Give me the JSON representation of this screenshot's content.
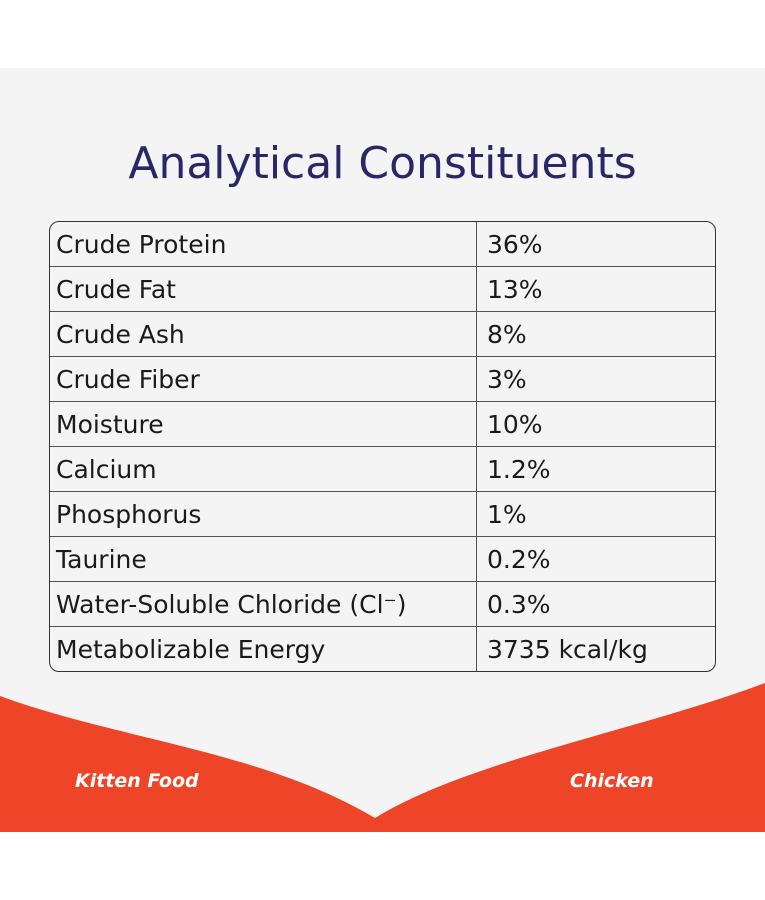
{
  "header": {
    "title": "Analytical Constituents"
  },
  "table": {
    "rows": [
      [
        "Crude Protein",
        "36%"
      ],
      [
        "Crude Fat",
        "13%"
      ],
      [
        "Crude Ash",
        "8%"
      ],
      [
        "Crude Fiber",
        "3%"
      ],
      [
        "Moisture",
        "10%"
      ],
      [
        "Calcium",
        "1.2%"
      ],
      [
        "Phosphorus",
        "1%"
      ],
      [
        "Taurine",
        "0.2%"
      ],
      [
        "Water-Soluble Chloride (Cl⁻)",
        "0.3%"
      ],
      [
        "Metabolizable Energy",
        "3735 kcal/kg"
      ]
    ]
  },
  "footer": {
    "left": "Kitten Food",
    "right": "Chicken"
  }
}
